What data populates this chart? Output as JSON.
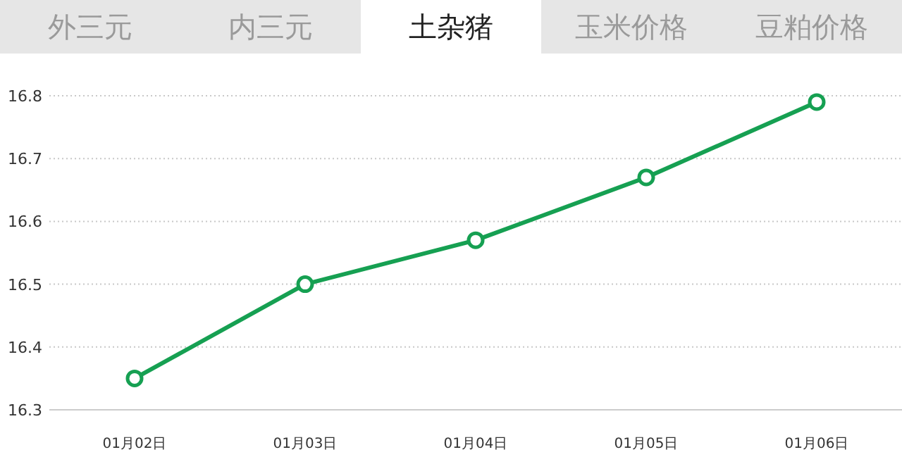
{
  "chart_data": {
    "type": "line",
    "title": "土杂猪",
    "annotations": [
      "外三元",
      "内三元",
      "玉米价格",
      "豆粕价格"
    ],
    "categories": [
      "01月02日",
      "01月03日",
      "01月04日",
      "01月05日",
      "01月06日"
    ],
    "series": [
      {
        "color": "#16a052",
        "values": [
          16.35,
          16.5,
          16.57,
          16.67,
          16.79
        ]
      }
    ],
    "ylim": [
      16.3,
      16.8
    ],
    "yticks": [
      16.3,
      16.4,
      16.5,
      16.6,
      16.7,
      16.8
    ],
    "grid": "y",
    "marker": "circle",
    "line_style": "solid"
  }
}
